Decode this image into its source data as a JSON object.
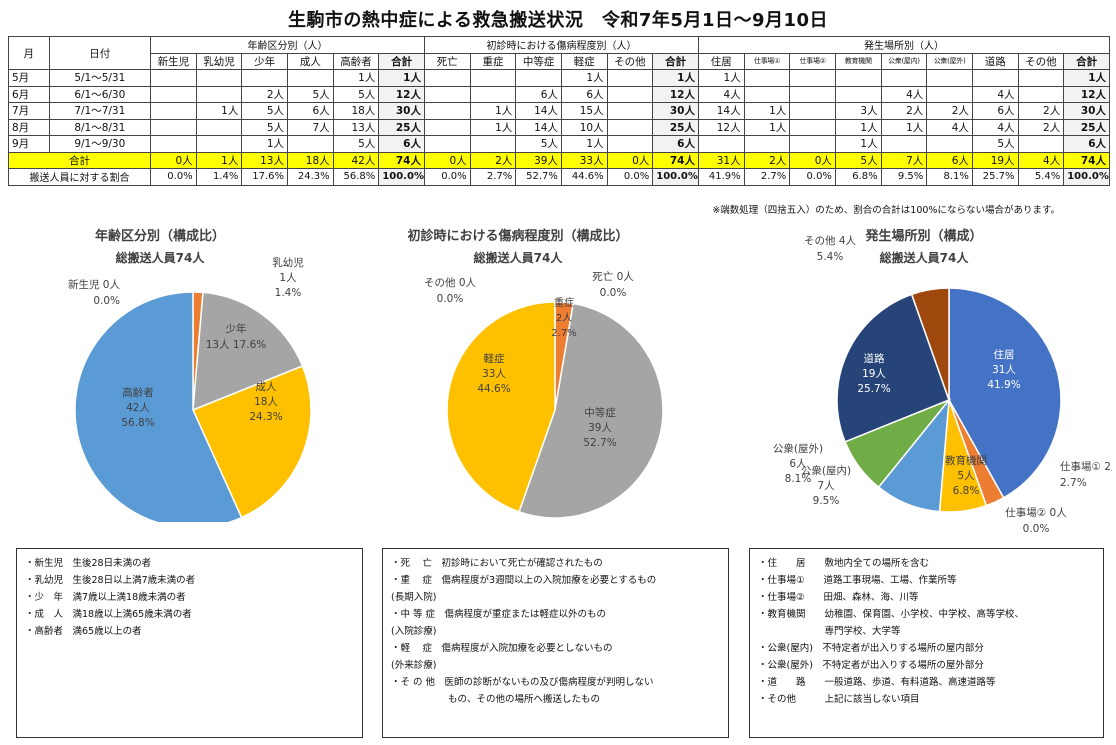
{
  "title": "生駒市の熱中症による救急搬送状況　令和7年5月1日～9月10日",
  "table": {
    "h_month": "月",
    "h_date": "日付",
    "groups": [
      "年齢区分別（人）",
      "初診時における傷病程度別（人）",
      "発生場所別（人）"
    ],
    "age_cols": [
      "新生児",
      "乳幼児",
      "少年",
      "成人",
      "高齢者",
      "合計"
    ],
    "sev_cols": [
      "死亡",
      "重症",
      "中等症",
      "軽症",
      "その他",
      "合計"
    ],
    "place_cols": [
      "住居",
      "仕事場①",
      "仕事場②",
      "教育機関",
      "公衆(屋内)",
      "公衆(屋外)",
      "道路",
      "その他",
      "合計"
    ],
    "rows": [
      {
        "month": "5月",
        "date": "5/1～5/31",
        "age": [
          "",
          "",
          "",
          "",
          "1人",
          "1人"
        ],
        "sev": [
          "",
          "",
          "",
          "1人",
          "",
          "1人"
        ],
        "place": [
          "1人",
          "",
          "",
          "",
          "",
          "",
          "",
          "",
          "1人"
        ]
      },
      {
        "month": "6月",
        "date": "6/1～6/30",
        "age": [
          "",
          "",
          "2人",
          "5人",
          "5人",
          "12人"
        ],
        "sev": [
          "",
          "",
          "6人",
          "6人",
          "",
          "12人"
        ],
        "place": [
          "4人",
          "",
          "",
          "",
          "4人",
          "",
          "4人",
          "",
          "12人"
        ]
      },
      {
        "month": "7月",
        "date": "7/1～7/31",
        "age": [
          "",
          "1人",
          "5人",
          "6人",
          "18人",
          "30人"
        ],
        "sev": [
          "",
          "1人",
          "14人",
          "15人",
          "",
          "30人"
        ],
        "place": [
          "14人",
          "1人",
          "",
          "3人",
          "2人",
          "2人",
          "6人",
          "2人",
          "30人"
        ]
      },
      {
        "month": "8月",
        "date": "8/1～8/31",
        "age": [
          "",
          "",
          "5人",
          "7人",
          "13人",
          "25人"
        ],
        "sev": [
          "",
          "1人",
          "14人",
          "10人",
          "",
          "25人"
        ],
        "place": [
          "12人",
          "1人",
          "",
          "1人",
          "1人",
          "4人",
          "4人",
          "2人",
          "25人"
        ]
      },
      {
        "month": "9月",
        "date": "9/1～9/30",
        "age": [
          "",
          "",
          "1人",
          "",
          "5人",
          "6人"
        ],
        "sev": [
          "",
          "",
          "5人",
          "1人",
          "",
          "6人"
        ],
        "place": [
          "",
          "",
          "",
          "1人",
          "",
          "",
          "5人",
          "",
          "6人"
        ]
      }
    ],
    "total_label": "合計",
    "total": {
      "age": [
        "0人",
        "1人",
        "13人",
        "18人",
        "42人",
        "74人"
      ],
      "sev": [
        "0人",
        "2人",
        "39人",
        "33人",
        "0人",
        "74人"
      ],
      "place": [
        "31人",
        "2人",
        "0人",
        "5人",
        "7人",
        "6人",
        "19人",
        "4人",
        "74人"
      ]
    },
    "ratio_label": "搬送人員に対する割合",
    "ratio": {
      "age": [
        "0.0%",
        "1.4%",
        "17.6%",
        "24.3%",
        "56.8%",
        "100.0%"
      ],
      "sev": [
        "0.0%",
        "2.7%",
        "52.7%",
        "44.6%",
        "0.0%",
        "100.0%"
      ],
      "place": [
        "41.9%",
        "2.7%",
        "0.0%",
        "6.8%",
        "9.5%",
        "8.1%",
        "25.7%",
        "5.4%",
        "100.0%"
      ]
    }
  },
  "note": "※端数処理（四捨五入）のため、割合の合計は100%にならない場合があります。",
  "chart_data": [
    {
      "type": "pie",
      "title": "年齢区分別（構成比）",
      "subtitle": "総搬送人員74人",
      "categories": [
        "新生児",
        "乳幼児",
        "少年",
        "成人",
        "高齢者"
      ],
      "values": [
        0,
        1,
        13,
        18,
        42
      ],
      "percent_labels": [
        "0.0%",
        "1.4%",
        "17.6%",
        "24.3%",
        "56.8%"
      ],
      "colors": [
        "#4472c4",
        "#ed7d31",
        "#a5a5a5",
        "#ffc000",
        "#5b9bd5"
      ]
    },
    {
      "type": "pie",
      "title": "初診時における傷病程度別（構成比）",
      "subtitle": "総搬送人員74人",
      "categories": [
        "死亡",
        "重症",
        "中等症",
        "軽症",
        "その他"
      ],
      "values": [
        0,
        2,
        39,
        33,
        0
      ],
      "percent_labels": [
        "0.0%",
        "2.7%",
        "52.7%",
        "44.6%",
        "0.0%"
      ],
      "colors": [
        "#4472c4",
        "#ed7d31",
        "#a5a5a5",
        "#ffc000",
        "#5b9bd5"
      ]
    },
    {
      "type": "pie",
      "title": "発生場所別（構成）",
      "subtitle": "総搬送人員74人",
      "categories": [
        "住居",
        "仕事場①",
        "仕事場②",
        "教育機関",
        "公衆(屋内)",
        "公衆(屋外)",
        "道路",
        "その他"
      ],
      "values": [
        31,
        2,
        0,
        5,
        7,
        6,
        19,
        4
      ],
      "percent_labels": [
        "41.9%",
        "2.7%",
        "0.0%",
        "6.8%",
        "9.5%",
        "8.1%",
        "25.7%",
        "5.4%"
      ],
      "colors": [
        "#4472c4",
        "#ed7d31",
        "#a5a5a5",
        "#ffc000",
        "#5b9bd5",
        "#70ad47",
        "#264478",
        "#9e480e"
      ]
    }
  ],
  "legends": [
    {
      "items": [
        {
          "k": "・新生児　",
          "v": "生後28日未満の者"
        },
        {
          "k": "・乳幼児　",
          "v": "生後28日以上満7歳未満の者"
        },
        {
          "k": "・少　年　",
          "v": "満7歳以上満18歳未満の者"
        },
        {
          "k": "・成　人　",
          "v": "満18歳以上満65歳未満の者"
        },
        {
          "k": "・高齢者　",
          "v": "満65歳以上の者"
        }
      ]
    },
    {
      "items": [
        {
          "k": "・死　 亡　",
          "v": "初診時において死亡が確認されたもの"
        },
        {
          "k": "・重　 症　",
          "v": "傷病程度が3週間以上の入院加療を必要とするもの"
        },
        {
          "k": "",
          "v": "(長期入院)"
        },
        {
          "k": "・中 等 症　",
          "v": "傷病程度が重症または軽症以外のもの"
        },
        {
          "k": "",
          "v": "(入院診療)"
        },
        {
          "k": "・軽　 症　",
          "v": "傷病程度が入院加療を必要としないもの"
        },
        {
          "k": "",
          "v": "(外来診療)"
        },
        {
          "k": "・そ の 他　",
          "v": "医師の診断がないもの及び傷病程度が判明しない"
        },
        {
          "k": "　　　　　　",
          "v": "もの、その他の場所へ搬送したもの"
        }
      ]
    },
    {
      "items": [
        {
          "k": "・住　　居　　",
          "v": "敷地内全ての場所を含む"
        },
        {
          "k": "・仕事場①　　",
          "v": "道路工事現場、工場、作業所等"
        },
        {
          "k": "・仕事場②　　",
          "v": "田畑、森林、海、川等"
        },
        {
          "k": "・教育機関　　",
          "v": "幼稚園、保育園、小学校、中学校、高等学校、"
        },
        {
          "k": "　　　　　　　",
          "v": "専門学校、大学等"
        },
        {
          "k": "・公衆(屋内)　",
          "v": "不特定者が出入りする場所の屋内部分"
        },
        {
          "k": "・公衆(屋外)　",
          "v": "不特定者が出入りする場所の屋外部分"
        },
        {
          "k": "・道　　路　　",
          "v": "一般道路、歩道、有料道路、高速道路等"
        },
        {
          "k": "・その他　　　",
          "v": "上記に該当しない項目"
        }
      ]
    }
  ]
}
